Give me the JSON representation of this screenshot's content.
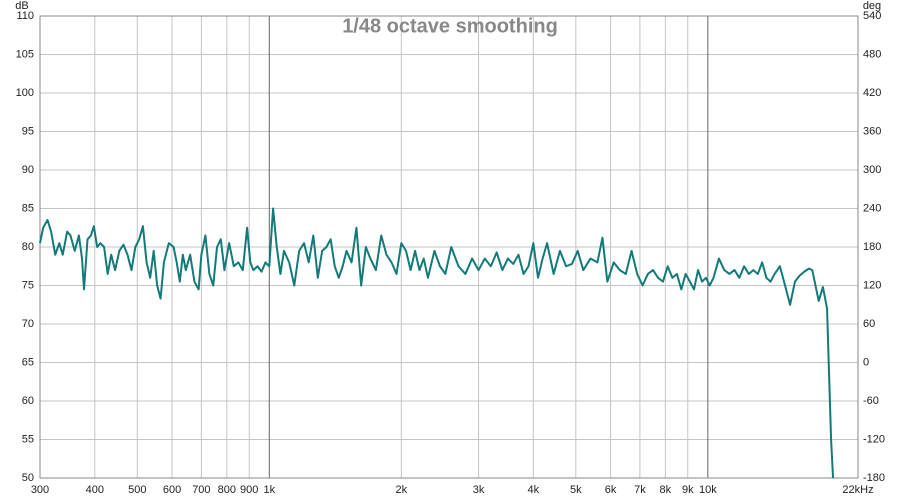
{
  "chart_data": {
    "type": "line",
    "title": "1/48 octave smoothing",
    "ylabel": "dB",
    "y2label": "deg",
    "xscale": "log",
    "grid": true,
    "color": "#137a7a",
    "xlim": [
      300,
      22000
    ],
    "ylim": [
      50,
      110
    ],
    "y2lim": [
      -180,
      540
    ],
    "xticks": [
      300,
      400,
      500,
      600,
      700,
      800,
      900,
      {
        "value": 1000,
        "label": "1k"
      },
      {
        "value": 2000,
        "label": "2k"
      },
      {
        "value": 3000,
        "label": "3k"
      },
      {
        "value": 4000,
        "label": "4k"
      },
      {
        "value": 5000,
        "label": "5k"
      },
      {
        "value": 6000,
        "label": "6k"
      },
      {
        "value": 7000,
        "label": "7k"
      },
      {
        "value": 8000,
        "label": "8k"
      },
      {
        "value": 9000,
        "label": "9k"
      },
      {
        "value": 10000,
        "label": "10k"
      },
      {
        "value": 22000,
        "label": "22kHz"
      }
    ],
    "yticks": [
      50,
      55,
      60,
      65,
      70,
      75,
      80,
      85,
      90,
      95,
      100,
      105,
      110
    ],
    "y2ticks": [
      -180,
      -120,
      -60,
      0,
      60,
      120,
      180,
      240,
      300,
      360,
      420,
      480,
      540
    ],
    "x": [
      300,
      305,
      312,
      318,
      325,
      332,
      338,
      346,
      352,
      360,
      368,
      374,
      378,
      385,
      392,
      398,
      405,
      412,
      420,
      428,
      436,
      445,
      455,
      465,
      475,
      485,
      495,
      505,
      515,
      525,
      535,
      545,
      555,
      565,
      575,
      590,
      605,
      615,
      625,
      635,
      645,
      660,
      675,
      690,
      700,
      715,
      730,
      745,
      760,
      775,
      790,
      810,
      830,
      850,
      870,
      890,
      905,
      920,
      940,
      960,
      980,
      1000,
      1020,
      1040,
      1060,
      1080,
      1110,
      1140,
      1170,
      1200,
      1230,
      1260,
      1290,
      1320,
      1350,
      1380,
      1410,
      1440,
      1470,
      1500,
      1540,
      1580,
      1620,
      1660,
      1700,
      1750,
      1800,
      1850,
      1900,
      1950,
      2000,
      2050,
      2100,
      2150,
      2200,
      2250,
      2300,
      2380,
      2450,
      2520,
      2600,
      2700,
      2800,
      2900,
      3000,
      3100,
      3200,
      3300,
      3400,
      3500,
      3600,
      3700,
      3800,
      3900,
      4000,
      4100,
      4200,
      4300,
      4450,
      4600,
      4750,
      4900,
      5050,
      5200,
      5400,
      5600,
      5750,
      5900,
      6100,
      6300,
      6500,
      6700,
      6900,
      7100,
      7300,
      7500,
      7700,
      7900,
      8100,
      8300,
      8500,
      8700,
      8900,
      9100,
      9300,
      9500,
      9700,
      9900,
      10100,
      10300,
      10600,
      10900,
      11200,
      11500,
      11800,
      12100,
      12400,
      12700,
      13000,
      13300,
      13600,
      13900,
      14200,
      14600,
      15000,
      15400,
      15800,
      16200,
      16600,
      17000,
      17300,
      17600,
      17900,
      18300,
      18700,
      19100,
      19300
    ],
    "values": [
      80.5,
      82.5,
      83.5,
      82,
      79,
      80.5,
      79,
      82,
      81.5,
      79.5,
      81.5,
      78.5,
      74.5,
      81,
      81.5,
      82.7,
      80,
      80.5,
      80,
      76.5,
      79,
      77,
      79.5,
      80.3,
      79,
      77,
      80,
      81,
      82.7,
      78,
      76,
      79.5,
      75,
      73.3,
      78,
      80.5,
      80,
      78,
      75.5,
      79,
      77,
      79,
      75.5,
      74.5,
      79,
      81.5,
      76.5,
      75,
      80,
      81,
      77,
      80.5,
      77.5,
      78,
      77,
      82.5,
      78,
      77,
      77.5,
      76.8,
      78,
      77.5,
      85,
      80,
      76.5,
      79.5,
      78,
      75,
      79.5,
      80.5,
      78,
      81.5,
      76,
      79.5,
      80,
      81,
      77.5,
      76,
      77.5,
      79.5,
      78,
      82.5,
      75,
      80,
      78.5,
      77,
      81.5,
      79,
      78,
      76.5,
      80.5,
      79.5,
      77,
      79.5,
      77,
      78.5,
      76,
      79.5,
      77.5,
      76.5,
      80,
      77.5,
      76.5,
      78.5,
      77,
      78.5,
      77.5,
      79.3,
      77,
      78.5,
      77.8,
      79,
      76.5,
      77.5,
      80.5,
      76,
      78.5,
      80.5,
      76.5,
      79.5,
      77.5,
      77.8,
      79.5,
      77,
      78.5,
      78,
      81.2,
      75.5,
      78,
      77,
      76.5,
      79.5,
      76.5,
      75,
      76.5,
      77,
      76,
      75.5,
      77.5,
      76,
      76.5,
      74.5,
      76.5,
      75.5,
      74.5,
      77,
      75.5,
      76,
      75,
      76,
      78.5,
      77,
      76.5,
      77,
      76,
      77.5,
      76.5,
      77,
      76.5,
      78,
      76,
      75.5,
      76.5,
      77.5,
      75,
      72.5,
      75.5,
      76.3,
      76.8,
      77.2,
      77,
      75,
      73,
      74.8,
      72,
      55,
      50
    ]
  }
}
